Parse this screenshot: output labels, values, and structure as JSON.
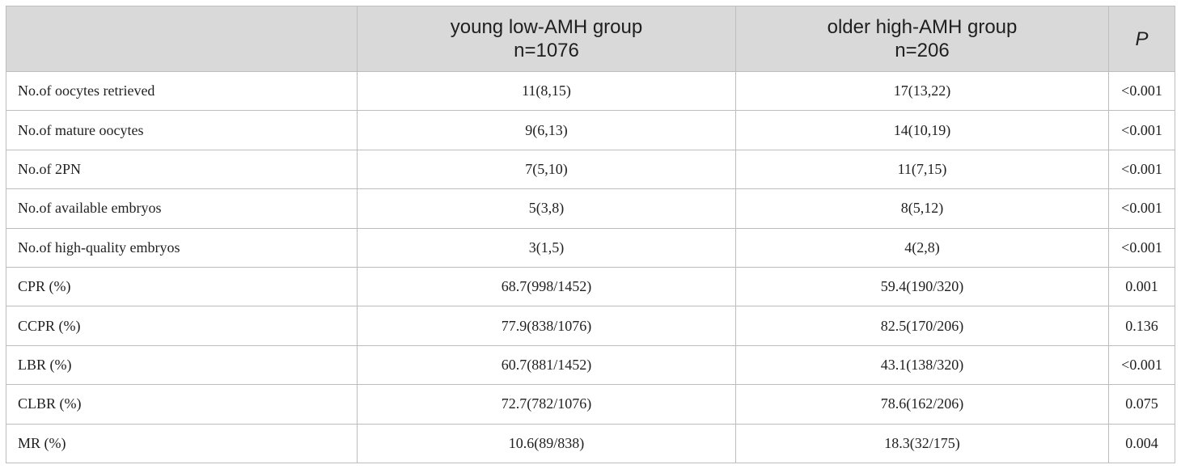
{
  "table": {
    "headers": [
      {
        "lines": [
          ""
        ]
      },
      {
        "lines": [
          "young low-AMH group",
          "n=1076"
        ]
      },
      {
        "lines": [
          "older high-AMH group",
          "n=206"
        ]
      },
      {
        "lines": [
          "P"
        ]
      }
    ],
    "rows": [
      [
        "No.of oocytes retrieved",
        "11(8,15)",
        "17(13,22)",
        "<0.001"
      ],
      [
        "No.of mature oocytes",
        "9(6,13)",
        "14(10,19)",
        "<0.001"
      ],
      [
        "No.of 2PN",
        "7(5,10)",
        "11(7,15)",
        "<0.001"
      ],
      [
        "No.of available embryos",
        "5(3,8)",
        "8(5,12)",
        "<0.001"
      ],
      [
        "No.of high-quality embryos",
        "3(1,5)",
        "4(2,8)",
        "<0.001"
      ],
      [
        "CPR (%)",
        "68.7(998/1452)",
        "59.4(190/320)",
        "0.001"
      ],
      [
        "CCPR (%)",
        "77.9(838/1076)",
        "82.5(170/206)",
        "0.136"
      ],
      [
        "LBR (%)",
        "60.7(881/1452)",
        "43.1(138/320)",
        "<0.001"
      ],
      [
        "CLBR (%)",
        "72.7(782/1076)",
        "78.6(162/206)",
        "0.075"
      ],
      [
        "MR (%)",
        "10.6(89/838)",
        "18.3(32/175)",
        "0.004"
      ]
    ]
  }
}
